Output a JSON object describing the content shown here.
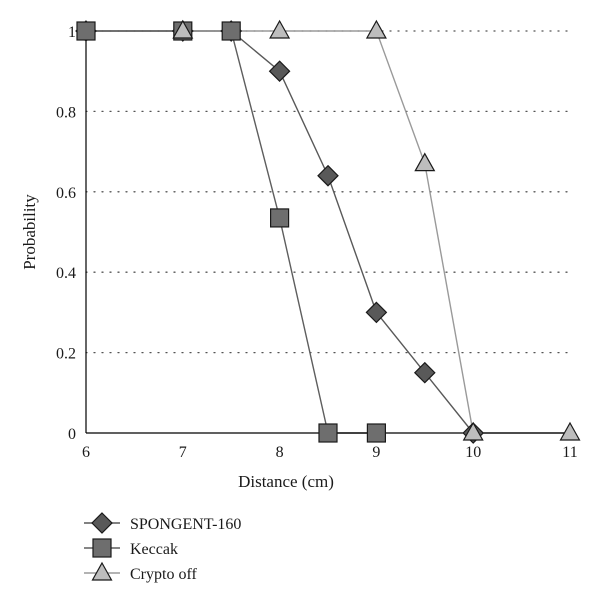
{
  "chart_data": {
    "type": "line",
    "title": "",
    "xlabel": "Distance (cm)",
    "ylabel": "Probability",
    "xlim": [
      6,
      11
    ],
    "ylim": [
      0,
      1
    ],
    "x_ticks": [
      "6",
      "7",
      "8",
      "9",
      "10",
      "11"
    ],
    "y_ticks": [
      "0",
      "0.2",
      "0.4",
      "0.6",
      "0.8",
      "1"
    ],
    "grid": "horizontal dotted",
    "legend_position": "bottom-left",
    "series": [
      {
        "name": "SPONGENT-160",
        "marker": "diamond",
        "color": "#595959",
        "line_color": "#595959",
        "points": [
          [
            6,
            1
          ],
          [
            7,
            1
          ],
          [
            7.5,
            1
          ],
          [
            8,
            0.9
          ],
          [
            8.5,
            0.64
          ],
          [
            9,
            0.3
          ],
          [
            9.5,
            0.15
          ],
          [
            10,
            0
          ]
        ]
      },
      {
        "name": "Keccak",
        "marker": "square",
        "color": "#6e6e6e",
        "line_color": "#5e5e5e",
        "points": [
          [
            6,
            1
          ],
          [
            7,
            1
          ],
          [
            7.5,
            1
          ],
          [
            8,
            0.535
          ],
          [
            8.5,
            0
          ],
          [
            9,
            0
          ]
        ]
      },
      {
        "name": "Crypto off",
        "marker": "triangle",
        "color": "#bdbdbd",
        "line_color": "#9a9a9a",
        "points": [
          [
            7,
            1
          ],
          [
            8,
            1
          ],
          [
            9,
            1
          ],
          [
            9.5,
            0.67
          ],
          [
            10,
            0
          ],
          [
            11,
            0
          ]
        ]
      }
    ]
  }
}
